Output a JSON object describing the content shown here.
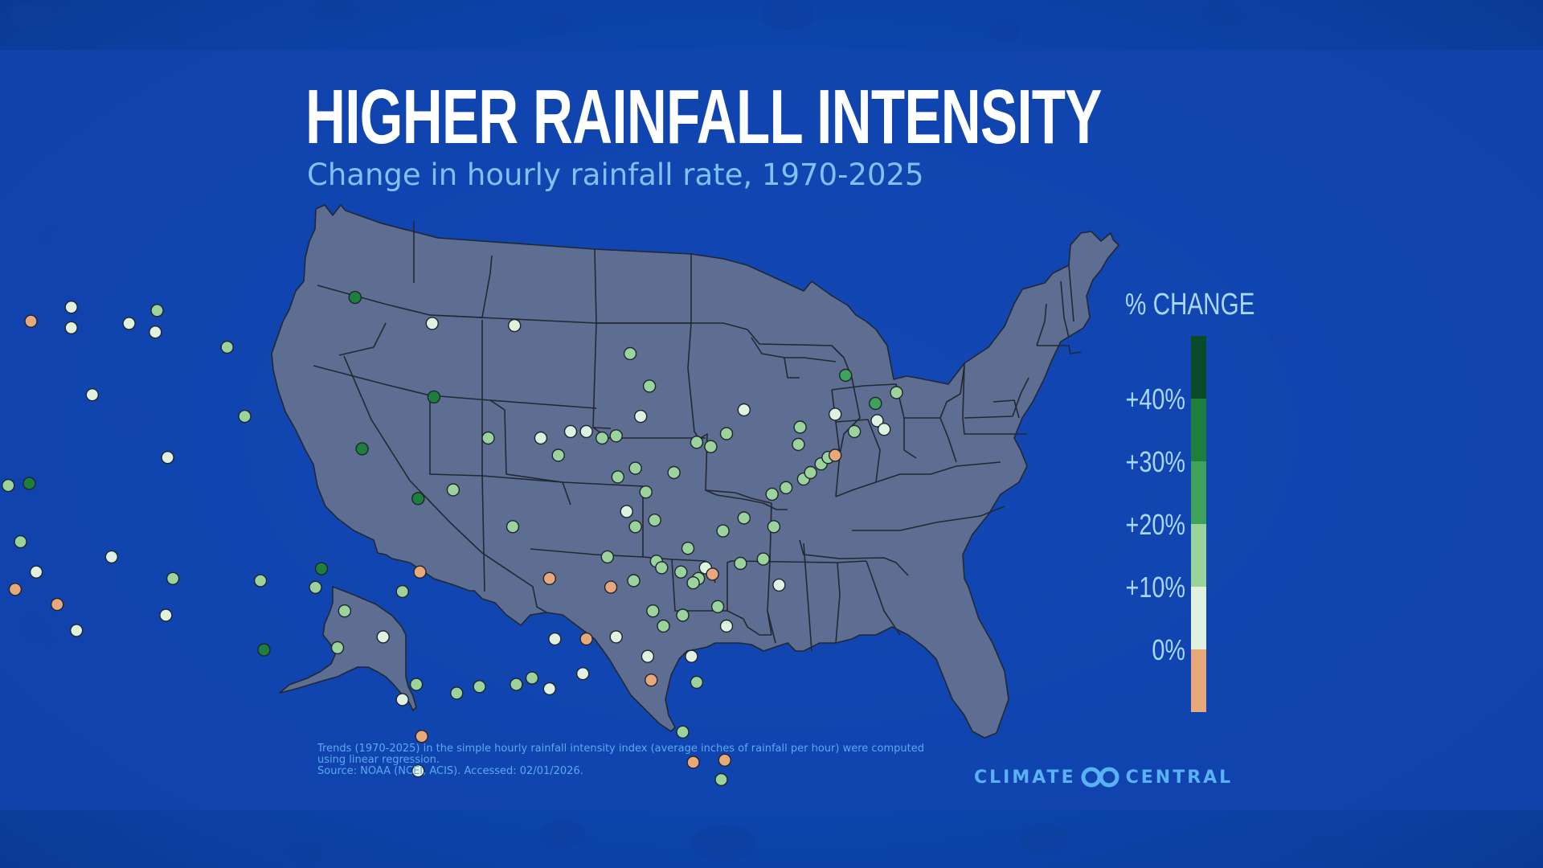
{
  "title": "HIGHER RAINFALL INTENSITY",
  "subtitle": "Change in hourly rainfall rate, 1970-2025",
  "legend": {
    "title": "% CHANGE",
    "labels": [
      "+40%",
      "+30%",
      "+20%",
      "+10%",
      "0%"
    ],
    "bins": [
      {
        "range": "+40% and above",
        "color": "#0b4a26"
      },
      {
        "range": "+30% to +40%",
        "color": "#1e7e3c"
      },
      {
        "range": "+20% to +30%",
        "color": "#3fa25a"
      },
      {
        "range": "+10% to +20%",
        "color": "#9bd39c"
      },
      {
        "range": "0% to +10%",
        "color": "#dff2df"
      },
      {
        "range": "below 0%",
        "color": "#e8a97a"
      }
    ]
  },
  "footnote": {
    "line1": "Trends (1970-2025) in the simple hourly rainfall intensity index (average inches of rainfall per hour) were computed using linear regression.",
    "line2": "Source: NOAA (NCEI, ACIS). Accessed: 02/01/2026."
  },
  "brand": {
    "left": "CLIMATE",
    "right": "CENTRAL",
    "icon": "infinity-logo-icon"
  },
  "colors": {
    "map_fill": "#5d6e92",
    "state_border": "#222833",
    "neg": "#e8a97a",
    "b0": "#dff2df",
    "b10": "#9bd39c",
    "b20": "#3fa25a",
    "b30": "#1e7e3c"
  },
  "stations": [
    {
      "lon": -122.3,
      "lat": 47.45,
      "bin": "b0"
    },
    {
      "lon": -119.7,
      "lat": 47.0,
      "bin": "neg"
    },
    {
      "lon": -117.4,
      "lat": 47.65,
      "bin": "b0"
    },
    {
      "lon": -122.6,
      "lat": 45.6,
      "bin": "b0"
    },
    {
      "lon": -117.4,
      "lat": 46.7,
      "bin": "b0"
    },
    {
      "lon": -123.2,
      "lat": 44.1,
      "bin": "neg"
    },
    {
      "lon": -114.1,
      "lat": 46.9,
      "bin": "b0"
    },
    {
      "lon": -112.5,
      "lat": 47.5,
      "bin": "b10"
    },
    {
      "lon": -112.6,
      "lat": 46.5,
      "bin": "b0"
    },
    {
      "lon": -108.5,
      "lat": 45.8,
      "bin": "b10"
    },
    {
      "lon": -123.5,
      "lat": 41.8,
      "bin": "b0"
    },
    {
      "lon": -116.2,
      "lat": 43.6,
      "bin": "b0"
    },
    {
      "lon": -121.0,
      "lat": 39.4,
      "bin": "b10"
    },
    {
      "lon": -119.8,
      "lat": 39.5,
      "bin": "b30"
    },
    {
      "lon": -122.4,
      "lat": 37.7,
      "bin": "neg"
    },
    {
      "lon": -120.3,
      "lat": 36.8,
      "bin": "b10"
    },
    {
      "lon": -119.4,
      "lat": 35.4,
      "bin": "b0"
    },
    {
      "lon": -120.6,
      "lat": 34.6,
      "bin": "neg"
    },
    {
      "lon": -118.2,
      "lat": 33.9,
      "bin": "neg"
    },
    {
      "lon": -117.1,
      "lat": 32.7,
      "bin": "b0"
    },
    {
      "lon": -115.1,
      "lat": 36.1,
      "bin": "b0"
    },
    {
      "lon": -111.9,
      "lat": 40.7,
      "bin": "b0"
    },
    {
      "lon": -107.5,
      "lat": 42.6,
      "bin": "b10"
    },
    {
      "lon": -111.6,
      "lat": 35.1,
      "bin": "b10"
    },
    {
      "lon": -112.0,
      "lat": 33.4,
      "bin": "b0"
    },
    {
      "lon": -106.6,
      "lat": 35.0,
      "bin": "b10"
    },
    {
      "lon": -106.4,
      "lat": 31.8,
      "bin": "b30"
    },
    {
      "lon": -101.2,
      "lat": 48.1,
      "bin": "b30"
    },
    {
      "lon": -96.8,
      "lat": 46.9,
      "bin": "b0"
    },
    {
      "lon": -96.7,
      "lat": 43.5,
      "bin": "b30"
    },
    {
      "lon": -100.8,
      "lat": 41.1,
      "bin": "b30"
    },
    {
      "lon": -97.6,
      "lat": 38.8,
      "bin": "b30"
    },
    {
      "lon": -95.6,
      "lat": 39.2,
      "bin": "b10"
    },
    {
      "lon": -97.5,
      "lat": 35.4,
      "bin": "neg"
    },
    {
      "lon": -98.5,
      "lat": 34.5,
      "bin": "b10"
    },
    {
      "lon": -101.8,
      "lat": 33.6,
      "bin": "b10"
    },
    {
      "lon": -102.2,
      "lat": 31.9,
      "bin": "b10"
    },
    {
      "lon": -99.6,
      "lat": 32.4,
      "bin": "b0"
    },
    {
      "lon": -98.5,
      "lat": 29.5,
      "bin": "b0"
    },
    {
      "lon": -97.7,
      "lat": 30.2,
      "bin": "b10"
    },
    {
      "lon": -97.4,
      "lat": 27.8,
      "bin": "neg"
    },
    {
      "lon": -97.6,
      "lat": 26.2,
      "bin": "b0"
    },
    {
      "lon": -95.4,
      "lat": 29.8,
      "bin": "b10"
    },
    {
      "lon": -94.1,
      "lat": 30.1,
      "bin": "b10"
    },
    {
      "lon": -92.1,
      "lat": 46.8,
      "bin": "b0"
    },
    {
      "lon": -93.6,
      "lat": 41.6,
      "bin": "b10"
    },
    {
      "lon": -90.6,
      "lat": 41.6,
      "bin": "b0"
    },
    {
      "lon": -89.6,
      "lat": 40.8,
      "bin": "b10"
    },
    {
      "lon": -88.9,
      "lat": 41.9,
      "bin": "b0"
    },
    {
      "lon": -88.0,
      "lat": 41.9,
      "bin": "b0"
    },
    {
      "lon": -87.1,
      "lat": 41.6,
      "bin": "b10"
    },
    {
      "lon": -86.3,
      "lat": 41.7,
      "bin": "b10"
    },
    {
      "lon": -86.2,
      "lat": 39.8,
      "bin": "b10"
    },
    {
      "lon": -85.2,
      "lat": 40.2,
      "bin": "b10"
    },
    {
      "lon": -84.9,
      "lat": 42.6,
      "bin": "b0"
    },
    {
      "lon": -84.4,
      "lat": 44.0,
      "bin": "b10"
    },
    {
      "lon": -85.5,
      "lat": 45.5,
      "bin": "b10"
    },
    {
      "lon": -84.6,
      "lat": 39.1,
      "bin": "b10"
    },
    {
      "lon": -83.0,
      "lat": 40.0,
      "bin": "b10"
    },
    {
      "lon": -81.7,
      "lat": 41.4,
      "bin": "b10"
    },
    {
      "lon": -80.9,
      "lat": 41.2,
      "bin": "b10"
    },
    {
      "lon": -80.0,
      "lat": 41.8,
      "bin": "b10"
    },
    {
      "lon": -79.0,
      "lat": 42.9,
      "bin": "b0"
    },
    {
      "lon": -85.7,
      "lat": 38.2,
      "bin": "b0"
    },
    {
      "lon": -85.2,
      "lat": 37.5,
      "bin": "b10"
    },
    {
      "lon": -84.1,
      "lat": 37.8,
      "bin": "b10"
    },
    {
      "lon": -92.2,
      "lat": 37.5,
      "bin": "b10"
    },
    {
      "lon": -90.1,
      "lat": 35.1,
      "bin": "neg"
    },
    {
      "lon": -86.8,
      "lat": 36.1,
      "bin": "b10"
    },
    {
      "lon": -86.6,
      "lat": 34.7,
      "bin": "neg"
    },
    {
      "lon": -85.3,
      "lat": 35.0,
      "bin": "b10"
    },
    {
      "lon": -84.0,
      "lat": 35.9,
      "bin": "b10"
    },
    {
      "lon": -82.6,
      "lat": 35.4,
      "bin": "b10"
    },
    {
      "lon": -83.7,
      "lat": 35.6,
      "bin": "b10"
    },
    {
      "lon": -82.2,
      "lat": 36.5,
      "bin": "b10"
    },
    {
      "lon": -81.6,
      "lat": 35.1,
      "bin": "b10"
    },
    {
      "lon": -81.2,
      "lat": 35.6,
      "bin": "b0"
    },
    {
      "lon": -80.8,
      "lat": 35.3,
      "bin": "neg"
    },
    {
      "lon": -81.9,
      "lat": 34.9,
      "bin": "b10"
    },
    {
      "lon": -80.5,
      "lat": 33.8,
      "bin": "b10"
    },
    {
      "lon": -80.0,
      "lat": 32.9,
      "bin": "b0"
    },
    {
      "lon": -79.2,
      "lat": 35.8,
      "bin": "b10"
    },
    {
      "lon": -80.2,
      "lat": 37.3,
      "bin": "b10"
    },
    {
      "lon": -79.0,
      "lat": 37.9,
      "bin": "b10"
    },
    {
      "lon": -77.3,
      "lat": 37.5,
      "bin": "b10"
    },
    {
      "lon": -77.9,
      "lat": 36.0,
      "bin": "b10"
    },
    {
      "lon": -77.0,
      "lat": 34.8,
      "bin": "b0"
    },
    {
      "lon": -77.4,
      "lat": 39.0,
      "bin": "b10"
    },
    {
      "lon": -76.6,
      "lat": 39.3,
      "bin": "b10"
    },
    {
      "lon": -75.6,
      "lat": 39.7,
      "bin": "b10"
    },
    {
      "lon": -75.2,
      "lat": 40.0,
      "bin": "b10"
    },
    {
      "lon": -74.6,
      "lat": 40.4,
      "bin": "b10"
    },
    {
      "lon": -74.2,
      "lat": 40.7,
      "bin": "b10"
    },
    {
      "lon": -73.8,
      "lat": 40.8,
      "bin": "neg"
    },
    {
      "lon": -75.9,
      "lat": 41.3,
      "bin": "b10"
    },
    {
      "lon": -75.8,
      "lat": 42.1,
      "bin": "b10"
    },
    {
      "lon": -73.8,
      "lat": 42.7,
      "bin": "b0"
    },
    {
      "lon": -72.7,
      "lat": 41.9,
      "bin": "b10"
    },
    {
      "lon": -71.4,
      "lat": 42.4,
      "bin": "b0"
    },
    {
      "lon": -71.0,
      "lat": 42.0,
      "bin": "b0"
    },
    {
      "lon": -71.5,
      "lat": 43.2,
      "bin": "b20"
    },
    {
      "lon": -73.2,
      "lat": 44.5,
      "bin": "b20"
    },
    {
      "lon": -70.3,
      "lat": 43.7,
      "bin": "b10"
    },
    {
      "lon": -84.2,
      "lat": 33.6,
      "bin": "b10"
    },
    {
      "lon": -83.6,
      "lat": 32.9,
      "bin": "b10"
    },
    {
      "lon": -82.5,
      "lat": 33.4,
      "bin": "b10"
    },
    {
      "lon": -82.0,
      "lat": 31.5,
      "bin": "b0"
    },
    {
      "lon": -84.5,
      "lat": 31.5,
      "bin": "b0"
    },
    {
      "lon": -86.3,
      "lat": 32.4,
      "bin": "b0"
    },
    {
      "lon": -88.2,
      "lat": 30.7,
      "bin": "b0"
    },
    {
      "lon": -89.8,
      "lat": 32.3,
      "bin": "b0"
    },
    {
      "lon": -88.0,
      "lat": 32.3,
      "bin": "neg"
    },
    {
      "lon": -91.1,
      "lat": 30.5,
      "bin": "b10"
    },
    {
      "lon": -90.1,
      "lat": 30.0,
      "bin": "b0"
    },
    {
      "lon": -92.0,
      "lat": 30.2,
      "bin": "b10"
    },
    {
      "lon": -84.3,
      "lat": 30.4,
      "bin": "neg"
    },
    {
      "lon": -81.7,
      "lat": 30.3,
      "bin": "b10"
    },
    {
      "lon": -82.5,
      "lat": 28.0,
      "bin": "b10"
    },
    {
      "lon": -81.9,
      "lat": 26.6,
      "bin": "neg"
    },
    {
      "lon": -80.1,
      "lat": 26.7,
      "bin": "neg"
    },
    {
      "lon": -80.3,
      "lat": 25.8,
      "bin": "b10"
    },
    {
      "lon": -150.0,
      "lat": 61.2,
      "bin": "b30"
    },
    {
      "lon": -151.5,
      "lat": 59.6,
      "bin": "b10"
    }
  ]
}
